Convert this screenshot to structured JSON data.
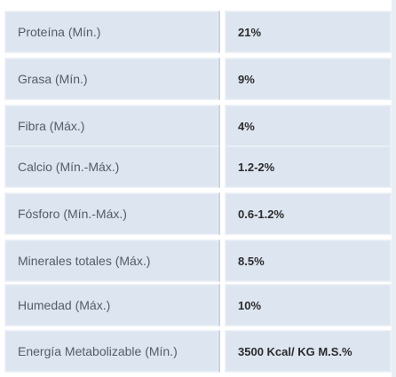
{
  "rows": [
    {
      "label": "Proteína (Mín.)",
      "value": "21%"
    },
    {
      "label": "Grasa (Mín.)",
      "value": "9%"
    },
    {
      "label": "Fibra (Máx.)",
      "value": "4%"
    },
    {
      "label": "Calcio (Mín.-Máx.)",
      "value": "1.2-2%"
    },
    {
      "label": "Fósforo (Mín.-Máx.)",
      "value": "0.6-1.2%"
    },
    {
      "label": "Minerales totales (Máx.)",
      "value": "8.5%"
    },
    {
      "label": "Humedad (Máx.)",
      "value": "10%"
    },
    {
      "label": "Energía Metabolizable (Mín.)",
      "value": "3500 Kcal/ KG M.S.%"
    }
  ]
}
